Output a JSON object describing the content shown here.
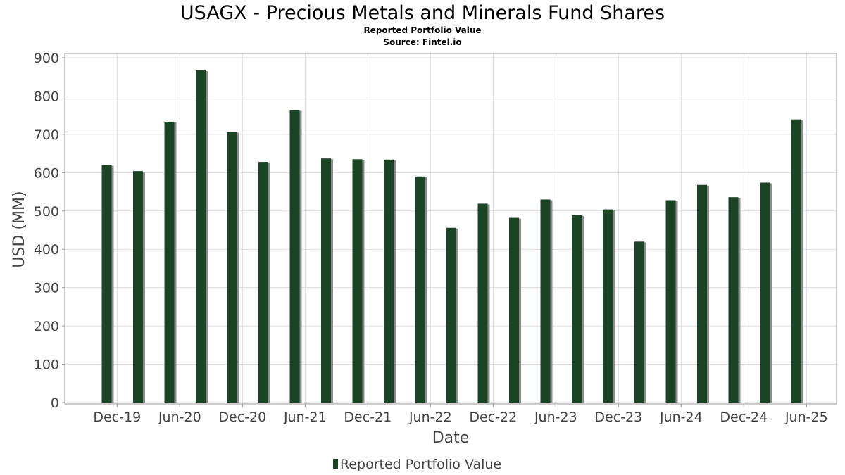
{
  "chart_data": {
    "type": "bar",
    "title": "USAGX - Precious Metals and Minerals Fund Shares",
    "subtitle": "Reported Portfolio Value",
    "source": "Source: Fintel.io",
    "xlabel": "Date",
    "ylabel": "USD (MM)",
    "ylim": [
      0,
      900
    ],
    "yticks": [
      "0",
      "100",
      "200",
      "300",
      "400",
      "500",
      "600",
      "700",
      "800",
      "900"
    ],
    "xticks": [
      "Dec-19",
      "Jun-20",
      "Dec-20",
      "Jun-21",
      "Dec-21",
      "Jun-22",
      "Dec-22",
      "Jun-23",
      "Dec-23",
      "Jun-24",
      "Dec-24",
      "Jun-25"
    ],
    "grid": true,
    "legend_position": "bottom",
    "series": [
      {
        "name": "Reported Portfolio Value",
        "color": "#1a4424",
        "points": [
          {
            "x": "2019-11",
            "y": 620
          },
          {
            "x": "2020-02",
            "y": 604
          },
          {
            "x": "2020-05",
            "y": 733
          },
          {
            "x": "2020-08",
            "y": 867
          },
          {
            "x": "2020-11",
            "y": 706
          },
          {
            "x": "2021-02",
            "y": 628
          },
          {
            "x": "2021-05",
            "y": 763
          },
          {
            "x": "2021-08",
            "y": 637
          },
          {
            "x": "2021-11",
            "y": 635
          },
          {
            "x": "2022-02",
            "y": 634
          },
          {
            "x": "2022-05",
            "y": 590
          },
          {
            "x": "2022-08",
            "y": 456
          },
          {
            "x": "2022-11",
            "y": 519
          },
          {
            "x": "2023-02",
            "y": 482
          },
          {
            "x": "2023-05",
            "y": 530
          },
          {
            "x": "2023-08",
            "y": 489
          },
          {
            "x": "2023-11",
            "y": 504
          },
          {
            "x": "2024-02",
            "y": 420
          },
          {
            "x": "2024-05",
            "y": 528
          },
          {
            "x": "2024-08",
            "y": 568
          },
          {
            "x": "2024-11",
            "y": 536
          },
          {
            "x": "2025-02",
            "y": 574
          },
          {
            "x": "2025-05",
            "y": 739
          }
        ]
      }
    ]
  }
}
